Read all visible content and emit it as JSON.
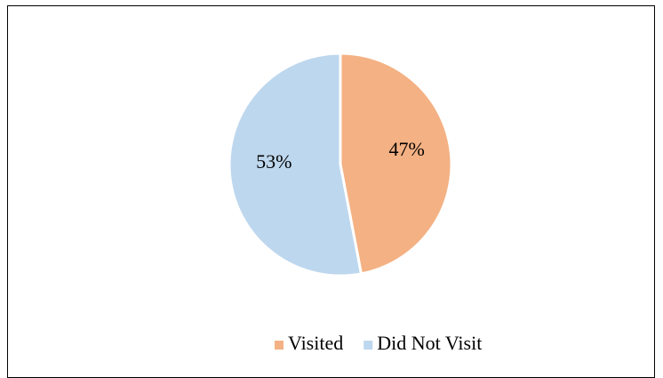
{
  "chart_data": {
    "type": "pie",
    "categories": [
      "Visited",
      "Did Not Visit"
    ],
    "values": [
      47,
      53
    ],
    "value_labels": [
      "47%",
      "53%"
    ],
    "colors": [
      "#F4B183",
      "#BDD7EE"
    ],
    "legend": "bottom"
  }
}
